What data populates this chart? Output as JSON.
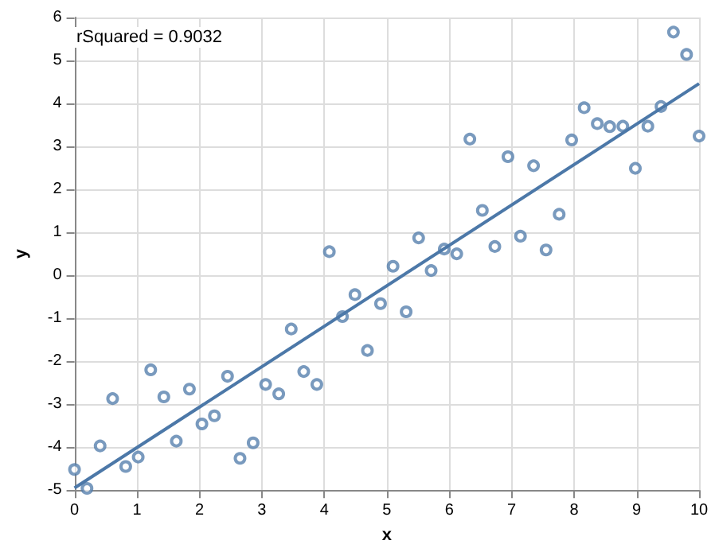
{
  "chart_data": {
    "type": "scatter",
    "xlabel": "x",
    "ylabel": "y",
    "annotations": [
      "rSquared = 0.9032"
    ],
    "xlim": [
      0,
      10
    ],
    "xticks": [
      0,
      1,
      2,
      3,
      4,
      5,
      6,
      7,
      8,
      9,
      10
    ],
    "ylim": [
      -5,
      6
    ],
    "yticks": [
      -5,
      -4,
      -3,
      -2,
      -1,
      0,
      1,
      2,
      3,
      4,
      5,
      6
    ],
    "grid": true,
    "marker": "circle",
    "series": [
      {
        "color": "#4c78a8",
        "x": [
          0,
          0.2,
          0.41,
          0.61,
          0.82,
          1.02,
          1.22,
          1.43,
          1.63,
          1.84,
          2.04,
          2.24,
          2.45,
          2.65,
          2.86,
          3.06,
          3.27,
          3.47,
          3.67,
          3.88,
          4.08,
          4.29,
          4.49,
          4.69,
          4.9,
          5.1,
          5.31,
          5.51,
          5.71,
          5.92,
          6.12,
          6.33,
          6.53,
          6.73,
          6.94,
          7.14,
          7.35,
          7.55,
          7.76,
          7.96,
          8.16,
          8.37,
          8.57,
          8.78,
          8.98,
          9.18,
          9.39,
          9.59,
          9.8,
          10
        ],
        "values": [
          -4.52,
          -4.96,
          -3.97,
          -2.87,
          -4.45,
          -4.23,
          -2.2,
          -2.83,
          -3.86,
          -2.65,
          -3.46,
          -3.27,
          -2.35,
          -4.26,
          -3.9,
          -2.54,
          -2.76,
          -1.25,
          -2.24,
          -2.54,
          0.55,
          -0.96,
          -0.45,
          -1.75,
          -0.66,
          0.21,
          -0.85,
          0.87,
          0.11,
          0.61,
          0.5,
          3.17,
          1.51,
          0.67,
          2.76,
          0.91,
          2.55,
          0.59,
          1.42,
          3.15,
          3.9,
          3.53,
          3.46,
          3.47,
          2.49,
          3.47,
          3.93,
          5.66,
          5.14,
          3.24
        ]
      },
      {
        "type": "line",
        "color": "#4c78a8",
        "marker": "none",
        "x": [
          0,
          10
        ],
        "values": [
          -4.95,
          4.46
        ]
      }
    ]
  }
}
